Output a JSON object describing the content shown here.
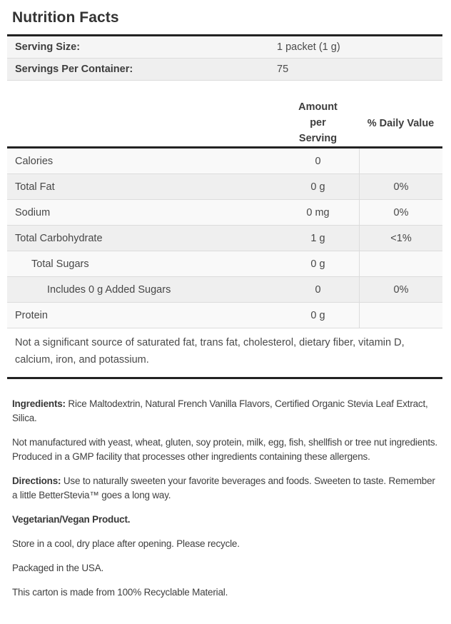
{
  "page": {
    "title": "Nutrition Facts"
  },
  "serving_info": {
    "rows": [
      {
        "label": "Serving Size:",
        "value": "1 packet (1 g)"
      },
      {
        "label": "Servings Per Container:",
        "value": "75"
      }
    ]
  },
  "nutrition_table": {
    "headers": {
      "amount": "Amount per Serving",
      "daily_value": "% Daily Value"
    },
    "rows": [
      {
        "label": "Calories",
        "amount": "0",
        "daily_value": ""
      },
      {
        "label": "Total Fat",
        "amount": "0 g",
        "daily_value": "0%"
      },
      {
        "label": "Sodium",
        "amount": "0 mg",
        "daily_value": "0%"
      },
      {
        "label": "Total Carbohydrate",
        "amount": "1 g",
        "daily_value": "<1%"
      },
      {
        "label": "Total Sugars",
        "amount": "0 g",
        "daily_value": ""
      },
      {
        "label": "Includes 0 g Added Sugars",
        "amount": "0",
        "daily_value": "0%"
      },
      {
        "label": "Protein",
        "amount": "0 g",
        "daily_value": ""
      }
    ],
    "footnote": "Not a significant source of saturated fat, trans fat, cholesterol, dietary fiber, vitamin D, calcium, iron, and potassium."
  },
  "details": {
    "ingredients_label": "Ingredients:",
    "ingredients_text": " Rice Maltodextrin, Natural French Vanilla Flavors, Certified Organic Stevia Leaf Extract, Silica.",
    "allergen_text": "Not manufactured with yeast, wheat, gluten, soy protein, milk, egg, fish, shellfish or tree nut ingredients. Produced in a GMP facility that processes other ingredients containing these allergens.",
    "directions_label": "Directions:",
    "directions_text": " Use to naturally sweeten your favorite beverages and foods. Sweeten to taste. Remember a little BetterStevia™ goes a long way.",
    "vegetarian_text": "Vegetarian/Vegan Product.",
    "storage_text": "Store in a cool, dry place after opening. Please recycle.",
    "packaged_text": "Packaged in the USA.",
    "recyclable_text": "This carton is made from 100% Recyclable Material."
  },
  "colors": {
    "rule_dark": "#222222",
    "rule_light": "#dcdcdc",
    "row_odd": "#f9f9f9",
    "row_even": "#efefef",
    "text_primary": "#3d3d3d",
    "text_secondary": "#4a4a4a"
  }
}
